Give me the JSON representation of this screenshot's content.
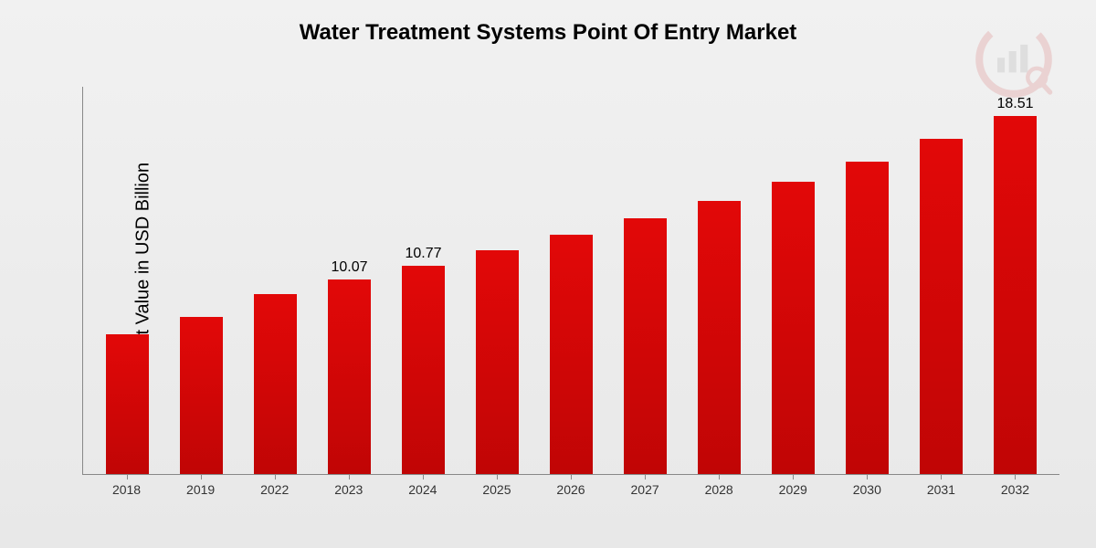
{
  "chart": {
    "type": "bar",
    "title": "Water Treatment Systems Point Of Entry Market",
    "title_fontsize": 24,
    "ylabel": "Market Value in USD Billion",
    "ylabel_fontsize": 20,
    "background_gradient": [
      "#f1f1f1",
      "#e8e8e8"
    ],
    "bar_gradient": [
      "#e20808",
      "#c00505"
    ],
    "axis_color": "#888888",
    "text_color": "#000000",
    "xtick_color": "#333333",
    "xtick_fontsize": 14,
    "value_label_fontsize": 16,
    "bar_width_ratio": 0.58,
    "ymax": 20.0,
    "ymin": 0,
    "categories": [
      "2018",
      "2019",
      "2022",
      "2023",
      "2024",
      "2025",
      "2026",
      "2027",
      "2028",
      "2029",
      "2030",
      "2031",
      "2032"
    ],
    "values": [
      7.2,
      8.1,
      9.3,
      10.07,
      10.77,
      11.55,
      12.35,
      13.2,
      14.1,
      15.1,
      16.15,
      17.3,
      18.51
    ],
    "value_labels": [
      "",
      "",
      "",
      "10.07",
      "10.77",
      "",
      "",
      "",
      "",
      "",
      "",
      "",
      "18.51"
    ],
    "logo": {
      "position": "top-right",
      "opacity": 0.12,
      "colors": [
        "#c00505",
        "#666666"
      ]
    }
  }
}
